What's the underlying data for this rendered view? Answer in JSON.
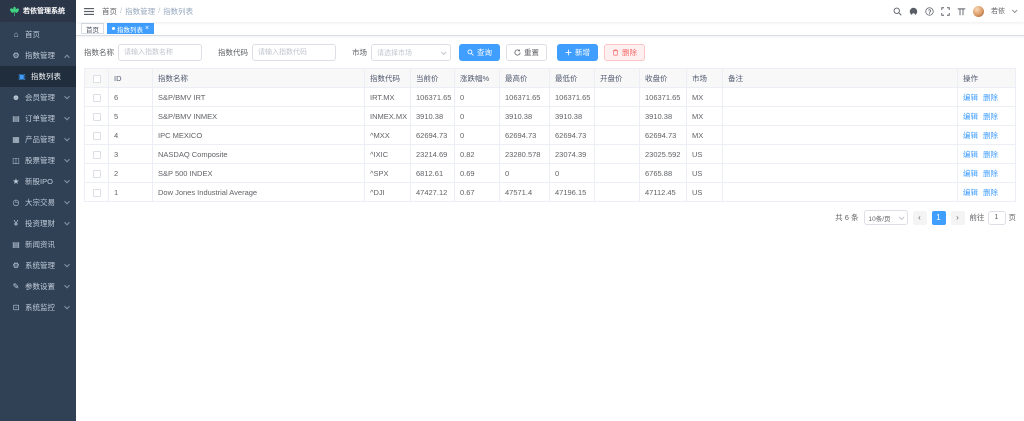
{
  "colors": {
    "accent": "#409eff",
    "danger": "#f56c6c",
    "sidebar_bg": "#304156",
    "sidebar_active_bg": "#1f2d3d",
    "logo_green": "#42d885",
    "tag_active": "#409eff"
  },
  "app": {
    "title": "若依管理系统"
  },
  "sidebar": {
    "items": [
      {
        "name": "home",
        "icon": "home-icon",
        "glyph": "⌂",
        "label": "首页"
      },
      {
        "name": "index-management",
        "icon": "gear-icon",
        "glyph": "⚙",
        "label": "指数管理",
        "arrow": "up"
      },
      {
        "name": "index-list",
        "icon": "list-icon",
        "glyph": "▣",
        "label": "指数列表",
        "submenu": true,
        "selected": true
      },
      {
        "name": "member-management",
        "icon": "user-icon",
        "glyph": "☻",
        "label": "会员管理",
        "arrow": "down"
      },
      {
        "name": "order-management",
        "icon": "order-icon",
        "glyph": "▤",
        "label": "订单管理",
        "arrow": "down"
      },
      {
        "name": "product-management",
        "icon": "cart-icon",
        "glyph": "▦",
        "label": "产品管理",
        "arrow": "down"
      },
      {
        "name": "stock-management",
        "icon": "chart-icon",
        "glyph": "◫",
        "label": "股票管理",
        "arrow": "down"
      },
      {
        "name": "new-stock-ipo",
        "icon": "star-icon",
        "glyph": "★",
        "label": "新股IPO",
        "arrow": "down"
      },
      {
        "name": "block-trading",
        "icon": "clock-icon",
        "glyph": "◷",
        "label": "大宗交易",
        "arrow": "down"
      },
      {
        "name": "investment",
        "icon": "money-icon",
        "glyph": "¥",
        "label": "投资理财",
        "arrow": "down"
      },
      {
        "name": "news",
        "icon": "news-icon",
        "glyph": "▤",
        "label": "新闻资讯"
      },
      {
        "name": "system-management",
        "icon": "gear-icon",
        "glyph": "⚙",
        "label": "系统管理",
        "arrow": "down"
      },
      {
        "name": "parameter-settings",
        "icon": "edit-icon",
        "glyph": "✎",
        "label": "参数设置",
        "arrow": "down"
      },
      {
        "name": "system-monitor",
        "icon": "monitor-icon",
        "glyph": "⊡",
        "label": "系统监控",
        "arrow": "down"
      }
    ]
  },
  "topbar": {
    "breadcrumb": [
      "首页",
      "指数管理",
      "指数列表"
    ],
    "icons": [
      "search-icon",
      "github-icon",
      "question-icon",
      "fullscreen-icon",
      "size-icon"
    ],
    "username": "若依"
  },
  "tags": [
    {
      "label": "首页",
      "active": false
    },
    {
      "label": "指数列表",
      "active": true,
      "closable": true
    }
  ],
  "filters": {
    "name_label": "指数名称",
    "name_placeholder": "请输入指数名称",
    "code_label": "指数代码",
    "code_placeholder": "请输入指数代码",
    "market_label": "市场",
    "market_placeholder": "请选择市场",
    "search_button": "查询",
    "reset_button": "重置",
    "add_button": "新增",
    "delete_button": "删除"
  },
  "table": {
    "headers": [
      "ID",
      "指数名称",
      "指数代码",
      "当前价",
      "涨跌幅%",
      "最高价",
      "最低价",
      "开盘价",
      "收盘价",
      "市场",
      "备注",
      "操作"
    ],
    "edit_label": "编辑",
    "delete_label": "删除",
    "rows": [
      {
        "id": "6",
        "name": "S&P/BMV IRT",
        "code": "IRT.MX",
        "current": "106371.65",
        "pct": "0",
        "high": "106371.65",
        "low": "106371.65",
        "open": "",
        "close": "106371.65",
        "market": "MX",
        "remark": ""
      },
      {
        "id": "5",
        "name": "S&P/BMV INMEX",
        "code": "INMEX.MX",
        "current": "3910.38",
        "pct": "0",
        "high": "3910.38",
        "low": "3910.38",
        "open": "",
        "close": "3910.38",
        "market": "MX",
        "remark": ""
      },
      {
        "id": "4",
        "name": "IPC MEXICO",
        "code": "^MXX",
        "current": "62694.73",
        "pct": "0",
        "high": "62694.73",
        "low": "62694.73",
        "open": "",
        "close": "62694.73",
        "market": "MX",
        "remark": ""
      },
      {
        "id": "3",
        "name": "NASDAQ Composite",
        "code": "^IXIC",
        "current": "23214.69",
        "pct": "0.82",
        "high": "23280.578",
        "low": "23074.39",
        "open": "",
        "close": "23025.592",
        "market": "US",
        "remark": ""
      },
      {
        "id": "2",
        "name": "S&P 500 INDEX",
        "code": "^SPX",
        "current": "6812.61",
        "pct": "0.69",
        "high": "0",
        "low": "0",
        "open": "",
        "close": "6765.88",
        "market": "US",
        "remark": ""
      },
      {
        "id": "1",
        "name": "Dow Jones Industrial Average",
        "code": "^DJI",
        "current": "47427.12",
        "pct": "0.67",
        "high": "47571.4",
        "low": "47196.15",
        "open": "",
        "close": "47112.45",
        "market": "US",
        "remark": ""
      }
    ]
  },
  "pagination": {
    "total": "共 6 条",
    "page_size": "10条/页",
    "current_page": "1",
    "goto_label": "前往",
    "goto_value": "1",
    "page_unit": "页"
  }
}
